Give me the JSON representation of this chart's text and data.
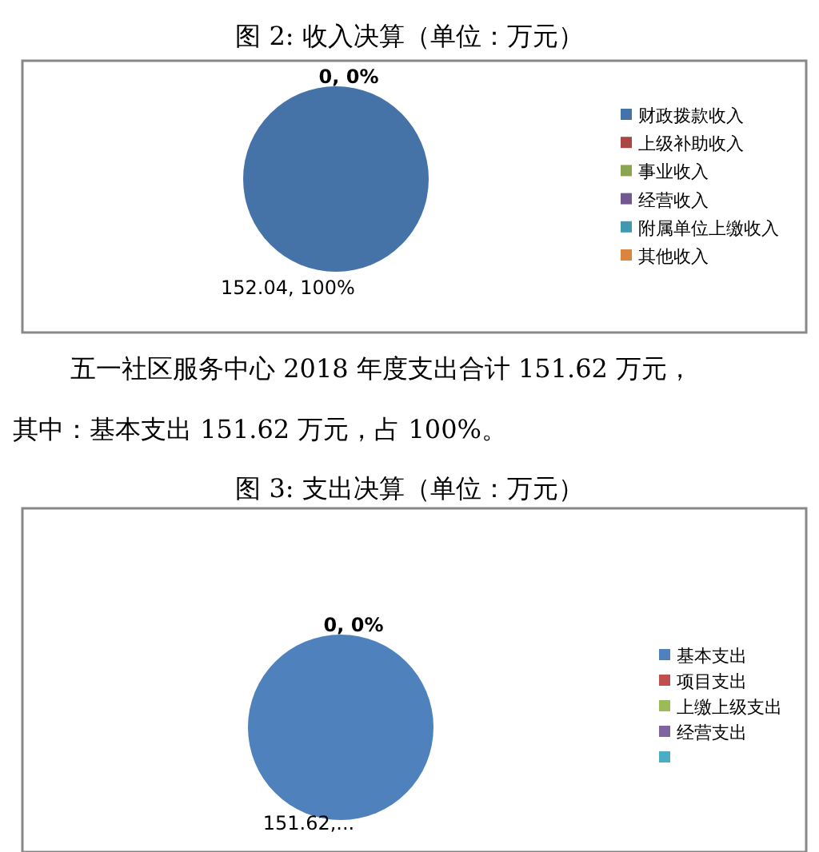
{
  "chart_data": [
    {
      "type": "pie",
      "title": "图 2: 收入决算（单位：万元）",
      "categories": [
        "财政拨款收入",
        "上级补助收入",
        "事业收入",
        "经营收入",
        "附属单位上缴收入",
        "其他收入"
      ],
      "values": [
        152.04,
        0,
        0,
        0,
        0,
        0
      ],
      "colors": [
        "#4572a7",
        "#aa4643",
        "#89a54e",
        "#71588f",
        "#4198af",
        "#db843d"
      ],
      "value_labels": [
        "152.04, 100%",
        "0, 0%",
        null,
        null,
        null,
        null
      ],
      "legend": "right",
      "annotations": [
        "五一社区服务中心 2018 年度支出合计 151.62 万元，",
        "其中：基本支出 151.62 万元，占 100%。"
      ]
    },
    {
      "type": "pie",
      "title": "图 3: 支出决算（单位：万元）",
      "categories": [
        "基本支出",
        "项目支出",
        "上缴上级支出",
        "经营支出",
        null
      ],
      "values": [
        151.62,
        0,
        0,
        0,
        0
      ],
      "colors": [
        "#4f81bd",
        "#c0504d",
        "#9bbb59",
        "#8064a2",
        "#4bacc6"
      ],
      "value_labels": [
        "151.62,...",
        "0, 0%",
        null,
        null,
        null
      ],
      "legend": "right"
    }
  ]
}
